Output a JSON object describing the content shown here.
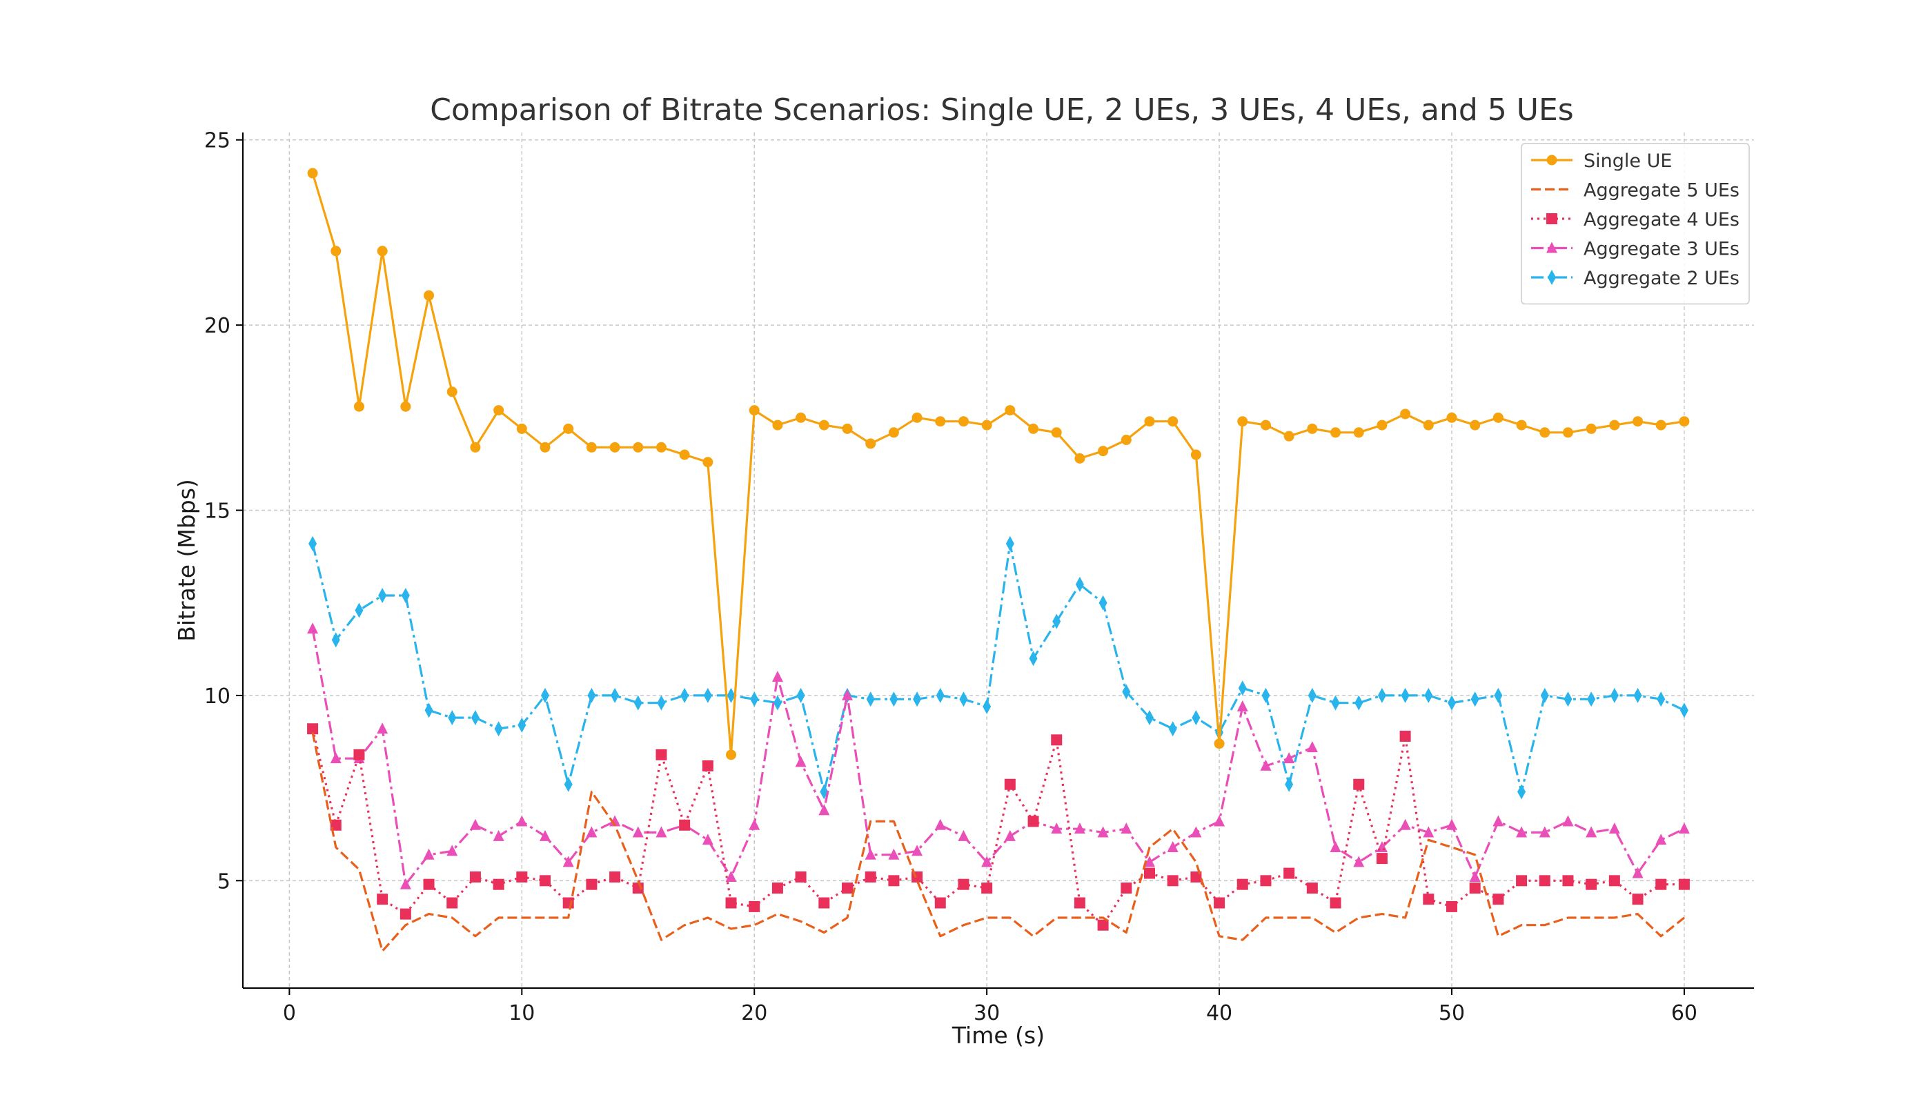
{
  "chart_data": {
    "type": "line",
    "title": "Comparison of Bitrate Scenarios: Single UE, 2 UEs, 3 UEs, 4 UEs, and 5 UEs",
    "xlabel": "Time (s)",
    "ylabel": "Bitrate (Mbps)",
    "xlim": [
      -2,
      63
    ],
    "ylim": [
      2.1,
      25.2
    ],
    "xticks": [
      0,
      10,
      20,
      30,
      40,
      50,
      60
    ],
    "yticks": [
      5,
      10,
      15,
      20,
      25
    ],
    "grid": true,
    "legend_position": "top-right",
    "x": [
      1,
      2,
      3,
      4,
      5,
      6,
      7,
      8,
      9,
      10,
      11,
      12,
      13,
      14,
      15,
      16,
      17,
      18,
      19,
      20,
      21,
      22,
      23,
      24,
      25,
      26,
      27,
      28,
      29,
      30,
      31,
      32,
      33,
      34,
      35,
      36,
      37,
      38,
      39,
      40,
      41,
      42,
      43,
      44,
      45,
      46,
      47,
      48,
      49,
      50,
      51,
      52,
      53,
      54,
      55,
      56,
      57,
      58,
      59,
      60
    ],
    "series": [
      {
        "name": "Single UE",
        "color": "#f5a20d",
        "line_style": "solid",
        "marker": "circle",
        "values": [
          24.1,
          22.0,
          17.8,
          22.0,
          17.8,
          20.8,
          18.2,
          16.7,
          17.7,
          17.2,
          16.7,
          17.2,
          16.7,
          16.7,
          16.7,
          16.7,
          16.5,
          16.3,
          8.4,
          17.7,
          17.3,
          17.5,
          17.3,
          17.2,
          16.8,
          17.1,
          17.5,
          17.4,
          17.4,
          17.3,
          17.7,
          17.2,
          17.1,
          16.4,
          16.6,
          16.9,
          17.4,
          17.4,
          16.5,
          8.7,
          17.4,
          17.3,
          17.0,
          17.2,
          17.1,
          17.1,
          17.3,
          17.6,
          17.3,
          17.5,
          17.3,
          17.5,
          17.3,
          17.1,
          17.1,
          17.2,
          17.3,
          17.4,
          17.3,
          17.4
        ]
      },
      {
        "name": "Aggregate 5 UEs",
        "color": "#e8601c",
        "line_style": "dashed",
        "marker": "none",
        "values": [
          9.0,
          5.9,
          5.3,
          3.1,
          3.8,
          4.1,
          4.0,
          3.5,
          4.0,
          4.0,
          4.0,
          4.0,
          7.4,
          6.5,
          5.0,
          3.4,
          3.8,
          4.0,
          3.7,
          3.8,
          4.1,
          3.9,
          3.6,
          4.0,
          6.6,
          6.6,
          5.0,
          3.5,
          3.8,
          4.0,
          4.0,
          3.5,
          4.0,
          4.0,
          4.0,
          3.6,
          5.9,
          6.4,
          5.5,
          3.5,
          3.4,
          4.0,
          4.0,
          4.0,
          3.6,
          4.0,
          4.1,
          4.0,
          6.1,
          5.9,
          5.7,
          3.5,
          3.8,
          3.8,
          4.0,
          4.0,
          4.0,
          4.1,
          3.5,
          4.0
        ]
      },
      {
        "name": "Aggregate 4 UEs",
        "color": "#e8305a",
        "line_style": "dotted",
        "marker": "square",
        "values": [
          9.1,
          6.5,
          8.4,
          4.5,
          4.1,
          4.9,
          4.4,
          5.1,
          4.9,
          5.1,
          5.0,
          4.4,
          4.9,
          5.1,
          4.8,
          8.4,
          6.5,
          8.1,
          4.4,
          4.3,
          4.8,
          5.1,
          4.4,
          4.8,
          5.1,
          5.0,
          5.1,
          4.4,
          4.9,
          4.8,
          7.6,
          6.6,
          8.8,
          4.4,
          3.8,
          4.8,
          5.2,
          5.0,
          5.1,
          4.4,
          4.9,
          5.0,
          5.2,
          4.8,
          4.4,
          7.6,
          5.6,
          8.9,
          4.5,
          4.3,
          4.8,
          4.5,
          5.0,
          5.0,
          5.0,
          4.9,
          5.0,
          4.5,
          4.9,
          4.9
        ]
      },
      {
        "name": "Aggregate 3 UEs",
        "color": "#ea4fb8",
        "line_style": "dashdot",
        "marker": "triangle",
        "values": [
          11.8,
          8.3,
          8.3,
          9.1,
          4.9,
          5.7,
          5.8,
          6.5,
          6.2,
          6.6,
          6.2,
          5.5,
          6.3,
          6.6,
          6.3,
          6.3,
          6.5,
          6.1,
          5.1,
          6.5,
          10.5,
          8.2,
          6.9,
          10.0,
          5.7,
          5.7,
          5.8,
          6.5,
          6.2,
          5.5,
          6.2,
          6.6,
          6.4,
          6.4,
          6.3,
          6.4,
          5.5,
          5.9,
          6.3,
          6.6,
          9.7,
          8.1,
          8.3,
          8.6,
          5.9,
          5.5,
          5.9,
          6.5,
          6.3,
          6.5,
          5.1,
          6.6,
          6.3,
          6.3,
          6.6,
          6.3,
          6.4,
          5.2,
          6.1,
          6.4
        ]
      },
      {
        "name": "Aggregate 2 UEs",
        "color": "#2ab4ec",
        "line_style": "dashdot",
        "marker": "thin_diamond",
        "values": [
          14.1,
          11.5,
          12.3,
          12.7,
          12.7,
          9.6,
          9.4,
          9.4,
          9.1,
          9.2,
          10.0,
          7.6,
          10.0,
          10.0,
          9.8,
          9.8,
          10.0,
          10.0,
          10.0,
          9.9,
          9.8,
          10.0,
          7.4,
          10.0,
          9.9,
          9.9,
          9.9,
          10.0,
          9.9,
          9.7,
          14.1,
          11.0,
          12.0,
          13.0,
          12.5,
          10.1,
          9.4,
          9.1,
          9.4,
          9.0,
          10.2,
          10.0,
          7.6,
          10.0,
          9.8,
          9.8,
          10.0,
          10.0,
          10.0,
          9.8,
          9.9,
          10.0,
          7.4,
          10.0,
          9.9,
          9.9,
          10.0,
          10.0,
          9.9,
          9.6
        ]
      }
    ]
  }
}
